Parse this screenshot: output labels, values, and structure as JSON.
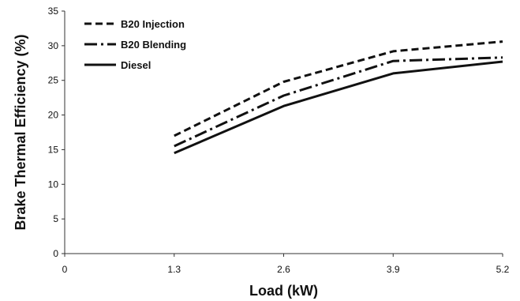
{
  "chart_data": {
    "type": "line",
    "title": "",
    "xlabel": "Load (kW)",
    "ylabel": "Brake Thermal Efficiency (%)",
    "x": [
      1.3,
      2.6,
      3.9,
      5.2
    ],
    "xlim": [
      0,
      5.2
    ],
    "ylim": [
      0,
      35
    ],
    "x_ticks": [
      0,
      1.3,
      2.6,
      3.9,
      5.2
    ],
    "x_tick_labels": [
      "0",
      "1.3",
      "2.6",
      "3.9",
      "5.2"
    ],
    "y_ticks": [
      0,
      5,
      10,
      15,
      20,
      25,
      30,
      35
    ],
    "y_tick_labels": [
      "0",
      "5",
      "10",
      "15",
      "20",
      "25",
      "30",
      "35"
    ],
    "grid": false,
    "legend_position": "top-left",
    "series": [
      {
        "name": "B20 Injection",
        "style": "dashed",
        "color": "#111111",
        "values": [
          17.0,
          24.8,
          29.2,
          30.6
        ]
      },
      {
        "name": "B20 Blending",
        "style": "dash-dot",
        "color": "#111111",
        "values": [
          15.5,
          22.8,
          27.8,
          28.3
        ]
      },
      {
        "name": "Diesel",
        "style": "solid",
        "color": "#111111",
        "values": [
          14.5,
          21.3,
          26.0,
          27.7
        ]
      }
    ]
  }
}
